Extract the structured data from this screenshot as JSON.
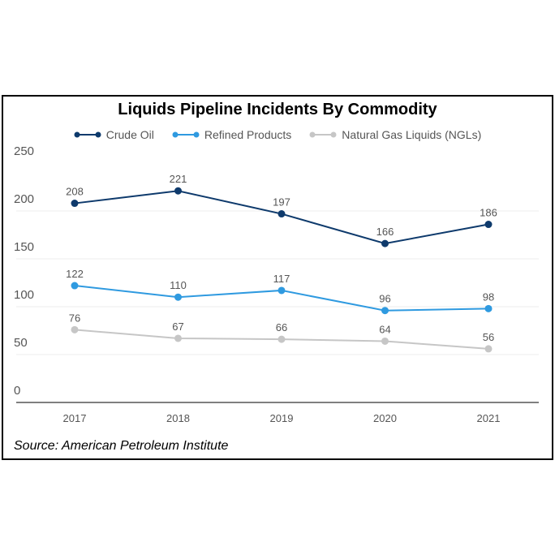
{
  "chart_data": {
    "type": "line",
    "title": "Liquids Pipeline Incidents By Commodity",
    "categories": [
      "2017",
      "2018",
      "2019",
      "2020",
      "2021"
    ],
    "series": [
      {
        "name": "Crude Oil",
        "color": "#0e3a6c",
        "values": [
          208,
          221,
          197,
          166,
          186
        ]
      },
      {
        "name": "Refined Products",
        "color": "#2f9ae0",
        "values": [
          122,
          110,
          117,
          96,
          98
        ]
      },
      {
        "name": "Natural Gas Liquids (NGLs)",
        "color": "#c6c6c6",
        "values": [
          76,
          67,
          66,
          64,
          56
        ]
      }
    ],
    "yticks": [
      "0",
      "50",
      "100",
      "150",
      "200",
      "250"
    ],
    "ylim": [
      0,
      250
    ],
    "grid": true,
    "legend": "top",
    "source": "Source: American Petroleum Institute"
  }
}
